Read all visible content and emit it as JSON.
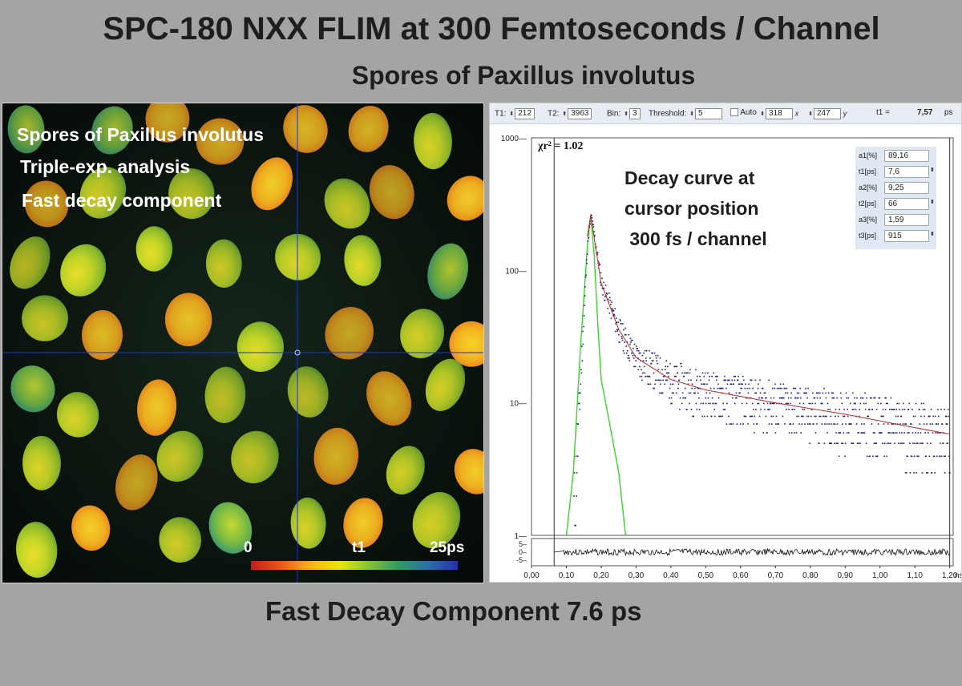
{
  "header": {
    "title": "SPC-180 NXX   FLIM at 300 Femtoseconds / Channel",
    "subtitle": "Spores of Paxillus involutus"
  },
  "footer": {
    "caption": "Fast Decay Component 7.6 ps"
  },
  "image": {
    "overlay_line1": "Spores of Paxillus involutus",
    "overlay_line2": "Triple-exp. analysis",
    "overlay_line3": "Fast decay component",
    "colorbar_min": "0",
    "colorbar_param": "t1",
    "colorbar_max": "25ps",
    "cursor_color": "#1a2cff"
  },
  "toolbar": {
    "t1_label": "T1:",
    "t1_value": "212",
    "t2_label": "T2:",
    "t2_value": "3963",
    "bin_label": "Bin:",
    "bin_value": "3",
    "threshold_label": "Threshold:",
    "threshold_value": "5",
    "auto_label": "Auto",
    "x_value": "318",
    "x_label": "x",
    "y_value": "247",
    "y_label": "y",
    "tau_label": "t1 =",
    "tau_value": "7,57",
    "tau_unit": "ps"
  },
  "fit_params": [
    {
      "label": "a1[%]",
      "value": "89,16",
      "spinner": false
    },
    {
      "label": "t1[ps]",
      "value": "7,6",
      "spinner": true
    },
    {
      "label": "a2[%]",
      "value": "9,25",
      "spinner": false
    },
    {
      "label": "t2[ps]",
      "value": "66",
      "spinner": true
    },
    {
      "label": "a3[%]",
      "value": "1,59",
      "spinner": false
    },
    {
      "label": "t3[ps]",
      "value": "915",
      "spinner": true
    }
  ],
  "plot": {
    "chi_label": "χr² =",
    "chi_value": "1.02",
    "annotation_line1": "Decay curve at",
    "annotation_line2": "cursor position",
    "annotation_line3": " 300 fs / channel"
  },
  "chart_data": {
    "type": "scatter",
    "xlabel": "ns",
    "ylabel": "",
    "y_scale": "log",
    "xlim": [
      0.0,
      1.21
    ],
    "ylim": [
      1,
      1000
    ],
    "x_ticks": [
      "0,00",
      "0,10",
      "0,20",
      "0,30",
      "0,40",
      "0,50",
      "0,60",
      "0,70",
      "0,80",
      "0,90",
      "1,00",
      "1,10",
      "1,20"
    ],
    "y_ticks": [
      "1",
      "10",
      "100",
      "1000"
    ],
    "residual_ticks": [
      "5",
      "0",
      "-5"
    ],
    "grid": true,
    "series": [
      {
        "name": "",
        "kind": "data points",
        "color": "#1a237e"
      },
      {
        "name": "",
        "kind": "fit curve",
        "color": "#c62828",
        "x": [
          0.16,
          0.17,
          0.2,
          0.25,
          0.3,
          0.4,
          0.5,
          0.7,
          0.9,
          1.1,
          1.2
        ],
        "y": [
          180,
          260,
          80,
          36,
          22,
          15,
          12.5,
          10,
          8.2,
          6.5,
          5.8
        ]
      },
      {
        "name": "",
        "kind": "IRF",
        "color": "#39d42c",
        "x": [
          0.1,
          0.12,
          0.14,
          0.16,
          0.17,
          0.18,
          0.19,
          0.2,
          0.22,
          0.25,
          0.27
        ],
        "y": [
          1,
          3,
          25,
          150,
          260,
          130,
          40,
          15,
          8,
          3,
          1
        ]
      }
    ]
  }
}
